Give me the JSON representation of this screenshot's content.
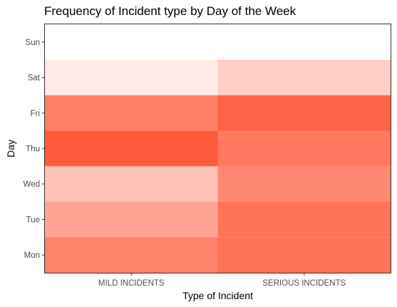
{
  "chart_data": {
    "type": "heatmap",
    "title": "Frequency of Incident type by Day of the Week",
    "xlabel": "Type of Incident",
    "ylabel": "Day",
    "x_categories": [
      "MILD INCIDENTS",
      "SERIOUS INCIDENTS"
    ],
    "y_categories": [
      "Mon",
      "Tue",
      "Wed",
      "Thu",
      "Fri",
      "Sat",
      "Sun"
    ],
    "color_low": "#ffffff",
    "color_high": "#ff5a3c",
    "cells": [
      {
        "x": "MILD INCIDENTS",
        "y": "Sun",
        "value": 0.0
      },
      {
        "x": "SERIOUS INCIDENTS",
        "y": "Sun",
        "value": 0.0
      },
      {
        "x": "MILD INCIDENTS",
        "y": "Sat",
        "value": 0.13
      },
      {
        "x": "SERIOUS INCIDENTS",
        "y": "Sat",
        "value": 0.3
      },
      {
        "x": "MILD INCIDENTS",
        "y": "Fri",
        "value": 0.78
      },
      {
        "x": "SERIOUS INCIDENTS",
        "y": "Fri",
        "value": 0.95
      },
      {
        "x": "MILD INCIDENTS",
        "y": "Thu",
        "value": 1.0
      },
      {
        "x": "SERIOUS INCIDENTS",
        "y": "Thu",
        "value": 0.82
      },
      {
        "x": "MILD INCIDENTS",
        "y": "Wed",
        "value": 0.38
      },
      {
        "x": "SERIOUS INCIDENTS",
        "y": "Wed",
        "value": 0.72
      },
      {
        "x": "MILD INCIDENTS",
        "y": "Tue",
        "value": 0.55
      },
      {
        "x": "SERIOUS INCIDENTS",
        "y": "Tue",
        "value": 0.85
      },
      {
        "x": "MILD INCIDENTS",
        "y": "Mon",
        "value": 0.76
      },
      {
        "x": "SERIOUS INCIDENTS",
        "y": "Mon",
        "value": 0.85
      }
    ],
    "legend": "none",
    "grid": false
  }
}
